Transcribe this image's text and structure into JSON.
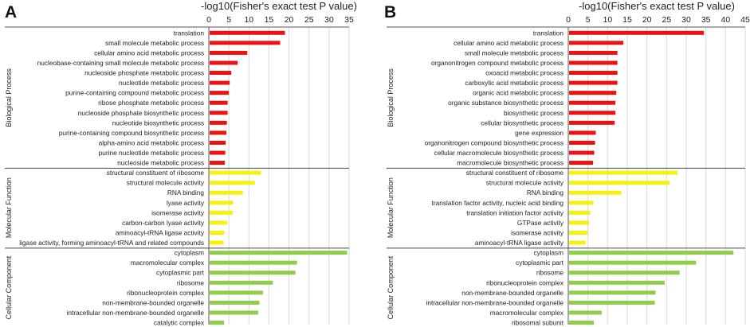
{
  "figure": {
    "letters": [
      "A",
      "B"
    ]
  },
  "chart_data": [
    {
      "type": "bar",
      "orientation": "horizontal",
      "panel": "A",
      "xlabel": "-log10(Fisher's exact test P value)",
      "xlim": [
        0,
        35
      ],
      "xticks": [
        0,
        5,
        10,
        15,
        20,
        25,
        30,
        35
      ],
      "grid": true,
      "groups": [
        {
          "name": "Biological Process",
          "color": "#ee1111",
          "categories": [
            "translation",
            "small molecule metabolic process",
            "cellular amino acid metabolic process",
            "nucleobase-containing small molecule metabolic process",
            "nucleoside phosphate metabolic process",
            "nucleotide metabolic process",
            "purine-containing compound metabolic process",
            "ribose phosphate metabolic process",
            "nucleoside phosphate biosynthetic process",
            "nucleotide biosynthetic process",
            "purine-containing compound biosynthetic process",
            "alpha-amino acid metabolic process",
            "purine nucleotide metabolic process",
            "nucleoside metabolic process"
          ],
          "values": [
            19,
            17.8,
            9.6,
            7.2,
            5.6,
            5.2,
            5.0,
            4.7,
            4.7,
            4.5,
            4.4,
            4.2,
            4.1,
            4.0
          ]
        },
        {
          "name": "Molecular Function",
          "color": "#f5f211",
          "categories": [
            "structural constituent of ribosome",
            "structural molecule activity",
            "RNA binding",
            "lyase activity",
            "isomerase activity",
            "carbon-carbon lyase activity",
            "aminoacyl-tRNA ligase activity",
            "ligase activity, forming aminoacyl-tRNA and related compounds"
          ],
          "values": [
            13.0,
            11.5,
            8.5,
            6.1,
            6.0,
            4.6,
            3.9,
            3.7
          ]
        },
        {
          "name": "Cellular Component",
          "color": "#8fcd4a",
          "categories": [
            "cytoplasm",
            "macromolecular complex",
            "cytoplasmic part",
            "ribosome",
            "ribonucleoprotein complex",
            "non-membrane-bounded organelle",
            "intracellular non-membrane-bounded organelle",
            "catalytic complex"
          ],
          "values": [
            34.5,
            22.0,
            21.6,
            16.0,
            13.5,
            12.6,
            12.3,
            3.8
          ]
        }
      ]
    },
    {
      "type": "bar",
      "orientation": "horizontal",
      "panel": "B",
      "xlabel": "-log10(Fisher's exact test P value)",
      "xlim": [
        0,
        45
      ],
      "xticks": [
        0,
        5,
        10,
        15,
        20,
        25,
        30,
        35,
        40,
        45
      ],
      "grid": true,
      "groups": [
        {
          "name": "Biological Process",
          "color": "#ee1111",
          "categories": [
            "translation",
            "cellular amino acid metabolic process",
            "small molecule metabolic process",
            "organonitrogen compound metabolic process",
            "oxoacid metabolic process",
            "carboxylic acid metabolic process",
            "organic acid metabolic process",
            "organic substance biosynthetic process",
            "biosynthetic process",
            "cellular biosynthetic process",
            "gene expression",
            "organonitrogen compound biosynthetic process",
            "cellular macromolecule biosynthetic process",
            "macromolecule biosynthetic process"
          ],
          "values": [
            34.5,
            14.0,
            12.5,
            12.5,
            12.5,
            12.5,
            12.2,
            12.0,
            12.0,
            11.8,
            7.0,
            6.8,
            6.6,
            6.3
          ]
        },
        {
          "name": "Molecular Function",
          "color": "#f5f211",
          "categories": [
            "structural constituent of ribosome",
            "structural molecule activity",
            "RNA binding",
            "translation factor activity, nucleic acid binding",
            "translation initiation factor activity",
            "GTPase activity",
            "isomerase activity",
            "aminoacyl-tRNA ligase activity"
          ],
          "values": [
            27.8,
            25.8,
            13.5,
            6.4,
            5.6,
            5.3,
            5.0,
            4.4
          ]
        },
        {
          "name": "Cellular Component",
          "color": "#8fcd4a",
          "categories": [
            "cytoplasm",
            "cytoplasmic part",
            "ribosome",
            "ribonucleoprotein complex",
            "non-membrane-bounded organelle",
            "intracellular non-membrane-bounded organelle",
            "macromolecular complex",
            "ribosomal subunit"
          ],
          "values": [
            42.0,
            32.5,
            28.3,
            24.5,
            22.2,
            22.0,
            8.5,
            6.5
          ]
        }
      ]
    }
  ]
}
